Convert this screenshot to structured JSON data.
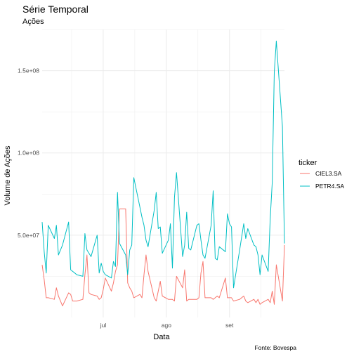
{
  "chart_data": {
    "type": "line",
    "title": "Série Temporal",
    "subtitle": "Ações",
    "xlabel": "Data",
    "ylabel": "Volume de Ações",
    "caption": "Fonte: Bovespa",
    "legend_title": "ticker",
    "legend_position": "right",
    "grid": true,
    "xlim": [
      "2021-06-01",
      "2021-09-28"
    ],
    "ylim": [
      0,
      175000000
    ],
    "y_ticks": [
      50000000,
      100000000,
      150000000
    ],
    "y_tick_labels": [
      "5.0e+07",
      "1.0e+08",
      "1.5e+08"
    ],
    "x_ticks": [
      "2021-07-01",
      "2021-08-01",
      "2021-09-01"
    ],
    "x_tick_labels": [
      "jul",
      "ago",
      "set"
    ],
    "x": [
      "2021-06-01",
      "2021-06-02",
      "2021-06-03",
      "2021-06-04",
      "2021-06-07",
      "2021-06-08",
      "2021-06-09",
      "2021-06-10",
      "2021-06-11",
      "2021-06-14",
      "2021-06-15",
      "2021-06-16",
      "2021-06-17",
      "2021-06-18",
      "2021-06-21",
      "2021-06-22",
      "2021-06-23",
      "2021-06-24",
      "2021-06-25",
      "2021-06-28",
      "2021-06-29",
      "2021-06-30",
      "2021-07-01",
      "2021-07-02",
      "2021-07-05",
      "2021-07-06",
      "2021-07-07",
      "2021-07-08",
      "2021-07-09",
      "2021-07-12",
      "2021-07-13",
      "2021-07-14",
      "2021-07-15",
      "2021-07-16",
      "2021-07-19",
      "2021-07-20",
      "2021-07-21",
      "2021-07-22",
      "2021-07-23",
      "2021-07-26",
      "2021-07-27",
      "2021-07-28",
      "2021-07-29",
      "2021-07-30",
      "2021-08-02",
      "2021-08-03",
      "2021-08-04",
      "2021-08-05",
      "2021-08-06",
      "2021-08-09",
      "2021-08-10",
      "2021-08-11",
      "2021-08-12",
      "2021-08-13",
      "2021-08-16",
      "2021-08-17",
      "2021-08-18",
      "2021-08-19",
      "2021-08-20",
      "2021-08-23",
      "2021-08-24",
      "2021-08-25",
      "2021-08-26",
      "2021-08-27",
      "2021-08-30",
      "2021-08-31",
      "2021-09-01",
      "2021-09-02",
      "2021-09-03",
      "2021-09-06",
      "2021-09-08",
      "2021-09-09",
      "2021-09-10",
      "2021-09-13",
      "2021-09-14",
      "2021-09-15",
      "2021-09-16",
      "2021-09-17",
      "2021-09-20",
      "2021-09-21",
      "2021-09-22",
      "2021-09-23",
      "2021-09-24",
      "2021-09-27",
      "2021-09-28"
    ],
    "series": [
      {
        "name": "CIEL3.SA",
        "color": "#F8766D",
        "values": [
          32000000,
          23000000,
          12000000,
          12000000,
          11000000,
          18000000,
          13000000,
          10000000,
          7000000,
          15000000,
          14000000,
          10000000,
          10000000,
          10000000,
          11000000,
          26000000,
          38000000,
          15000000,
          14000000,
          13000000,
          11000000,
          12000000,
          17000000,
          24000000,
          16000000,
          21000000,
          28000000,
          32000000,
          66000000,
          66000000,
          21000000,
          18000000,
          16000000,
          12000000,
          14000000,
          12000000,
          26000000,
          38000000,
          28000000,
          12000000,
          10000000,
          16000000,
          22000000,
          13000000,
          11000000,
          11000000,
          11000000,
          10000000,
          25000000,
          18000000,
          29000000,
          10000000,
          11000000,
          11000000,
          11000000,
          12000000,
          27000000,
          34000000,
          12000000,
          12000000,
          11000000,
          12000000,
          13000000,
          12000000,
          24000000,
          12000000,
          12000000,
          12000000,
          10000000,
          11000000,
          13000000,
          10000000,
          9000000,
          11000000,
          9000000,
          11000000,
          8000000,
          9000000,
          11000000,
          9000000,
          16000000,
          8000000,
          32000000,
          10000000,
          44000000
        ]
      },
      {
        "name": "PETR4.SA",
        "color": "#00BFC4",
        "values": [
          58000000,
          40000000,
          27000000,
          56000000,
          48000000,
          56000000,
          38000000,
          41000000,
          44000000,
          58000000,
          29000000,
          28000000,
          27000000,
          26000000,
          25000000,
          51000000,
          41000000,
          39000000,
          37000000,
          50000000,
          27000000,
          33000000,
          28000000,
          26000000,
          24000000,
          34000000,
          31000000,
          76000000,
          45000000,
          38000000,
          26000000,
          41000000,
          44000000,
          85000000,
          67000000,
          61000000,
          56000000,
          47000000,
          43000000,
          65000000,
          76000000,
          54000000,
          55000000,
          39000000,
          47000000,
          57000000,
          30000000,
          73000000,
          88000000,
          37000000,
          44000000,
          64000000,
          42000000,
          41000000,
          56000000,
          57000000,
          47000000,
          38000000,
          36000000,
          56000000,
          77000000,
          36000000,
          35000000,
          43000000,
          40000000,
          63000000,
          57000000,
          55000000,
          18000000,
          41000000,
          57000000,
          48000000,
          54000000,
          44000000,
          43000000,
          38000000,
          26000000,
          38000000,
          28000000,
          60000000,
          82000000,
          149000000,
          168000000,
          116000000,
          45000000
        ]
      }
    ]
  }
}
